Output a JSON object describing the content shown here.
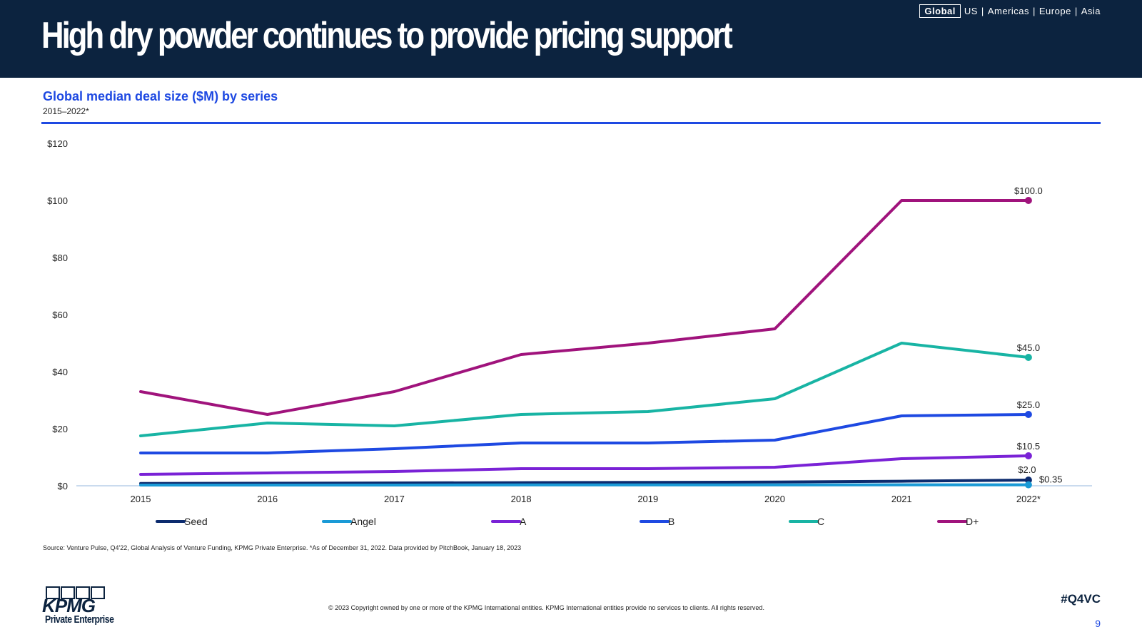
{
  "header": {
    "title": "High dry powder continues to provide pricing support",
    "regions": [
      "Global",
      "US",
      "Americas",
      "Europe",
      "Asia"
    ],
    "active_region": "Global"
  },
  "chart_data": {
    "type": "line",
    "title": "Global median deal size ($M) by series",
    "subtitle": "2015–2022*",
    "categories": [
      "2015",
      "2016",
      "2017",
      "2018",
      "2019",
      "2020",
      "2021",
      "2022*"
    ],
    "y_ticks": [
      "$0",
      "$20",
      "$40",
      "$60",
      "$80",
      "$100",
      "$120"
    ],
    "ylim": [
      0,
      120
    ],
    "legend_position": "bottom",
    "grid": false,
    "series": [
      {
        "name": "Seed",
        "color": "#0c2b6e",
        "values": [
          0.8,
          0.9,
          1.0,
          1.1,
          1.2,
          1.3,
          1.6,
          2.0
        ],
        "end_label": "$2.0"
      },
      {
        "name": "Angel",
        "color": "#1a9ad6",
        "values": [
          0.25,
          0.25,
          0.25,
          0.3,
          0.3,
          0.3,
          0.35,
          0.35
        ],
        "end_label": "$0.35"
      },
      {
        "name": "A",
        "color": "#7a22d6",
        "values": [
          4,
          4.5,
          5,
          6,
          6,
          6.5,
          9.5,
          10.5
        ],
        "end_label": "$10.5"
      },
      {
        "name": "B",
        "color": "#1e49e2",
        "values": [
          11.5,
          11.5,
          13,
          15,
          15,
          16,
          24.5,
          25
        ],
        "end_label": "$25.0"
      },
      {
        "name": "C",
        "color": "#18b4a4",
        "values": [
          17.5,
          22,
          21,
          25,
          26,
          30.5,
          50,
          45
        ],
        "end_label": "$45.0"
      },
      {
        "name": "D+",
        "color": "#a0137c",
        "values": [
          33,
          25,
          33,
          46,
          50,
          55,
          100,
          100
        ],
        "end_label": "$100.0"
      }
    ]
  },
  "footer": {
    "source": "Source: Venture Pulse, Q4'22, Global Analysis of Venture Funding, KPMG Private Enterprise. *As of December 31, 2022. Data provided by PitchBook, January 18, 2023",
    "copyright": "© 2023 Copyright owned by one or more of the KPMG International entities. KPMG International entities provide no services to clients. All rights reserved.",
    "hashtag": "#Q4VC",
    "page_number": "9",
    "logo_text": "KPMG",
    "logo_subtext": "Private Enterprise"
  }
}
